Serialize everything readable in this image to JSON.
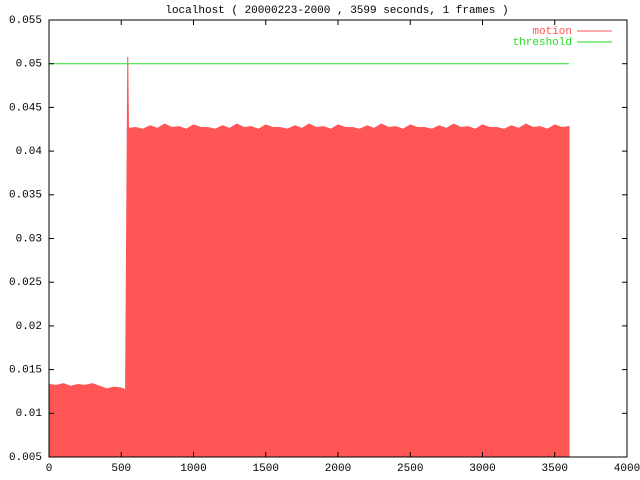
{
  "chart_data": {
    "type": "area",
    "title": "localhost ( 20000223-2000 , 3599 seconds, 1 frames )",
    "xlim": [
      0,
      4000
    ],
    "xticks": [
      0,
      500,
      1000,
      1500,
      2000,
      2500,
      3000,
      3500,
      4000
    ],
    "ylim": [
      0.005,
      0.055
    ],
    "yticks": [
      0.005,
      0.01,
      0.015,
      0.02,
      0.025,
      0.03,
      0.035,
      0.04,
      0.045,
      0.05,
      0.055
    ],
    "legend": "top-right",
    "series": [
      {
        "name": "motion",
        "color": "#ff5555",
        "style": "fill",
        "x": [
          0,
          50,
          100,
          150,
          200,
          250,
          300,
          350,
          400,
          450,
          500,
          530,
          545,
          550,
          600,
          650,
          700,
          750,
          800,
          850,
          900,
          950,
          1000,
          1050,
          1100,
          1150,
          1200,
          1250,
          1300,
          1350,
          1400,
          1450,
          1500,
          1550,
          1600,
          1650,
          1700,
          1750,
          1800,
          1850,
          1900,
          1950,
          2000,
          2050,
          2100,
          2150,
          2200,
          2250,
          2300,
          2350,
          2400,
          2450,
          2500,
          2550,
          2600,
          2650,
          2700,
          2750,
          2800,
          2850,
          2900,
          2950,
          3000,
          3050,
          3100,
          3150,
          3200,
          3250,
          3300,
          3350,
          3400,
          3450,
          3500,
          3550,
          3599
        ],
        "values": [
          0.0133,
          0.0132,
          0.0134,
          0.0131,
          0.0133,
          0.0132,
          0.0134,
          0.0131,
          0.0128,
          0.013,
          0.0129,
          0.0127,
          0.0508,
          0.0426,
          0.0427,
          0.0425,
          0.0429,
          0.0426,
          0.0431,
          0.0427,
          0.0428,
          0.0425,
          0.043,
          0.0427,
          0.0427,
          0.0425,
          0.0429,
          0.0426,
          0.0431,
          0.0427,
          0.0428,
          0.0425,
          0.043,
          0.0427,
          0.0427,
          0.0425,
          0.0429,
          0.0426,
          0.0431,
          0.0427,
          0.0428,
          0.0425,
          0.043,
          0.0427,
          0.0427,
          0.0425,
          0.0429,
          0.0426,
          0.0431,
          0.0427,
          0.0428,
          0.0425,
          0.043,
          0.0427,
          0.0427,
          0.0425,
          0.0429,
          0.0426,
          0.0431,
          0.0427,
          0.0428,
          0.0425,
          0.043,
          0.0427,
          0.0427,
          0.0425,
          0.0429,
          0.0426,
          0.0431,
          0.0427,
          0.0428,
          0.0425,
          0.043,
          0.0427,
          0.0428
        ]
      },
      {
        "name": "threshold",
        "color": "#22dd22",
        "style": "line",
        "x": [
          0,
          3599
        ],
        "values": [
          0.05,
          0.05
        ]
      }
    ]
  }
}
